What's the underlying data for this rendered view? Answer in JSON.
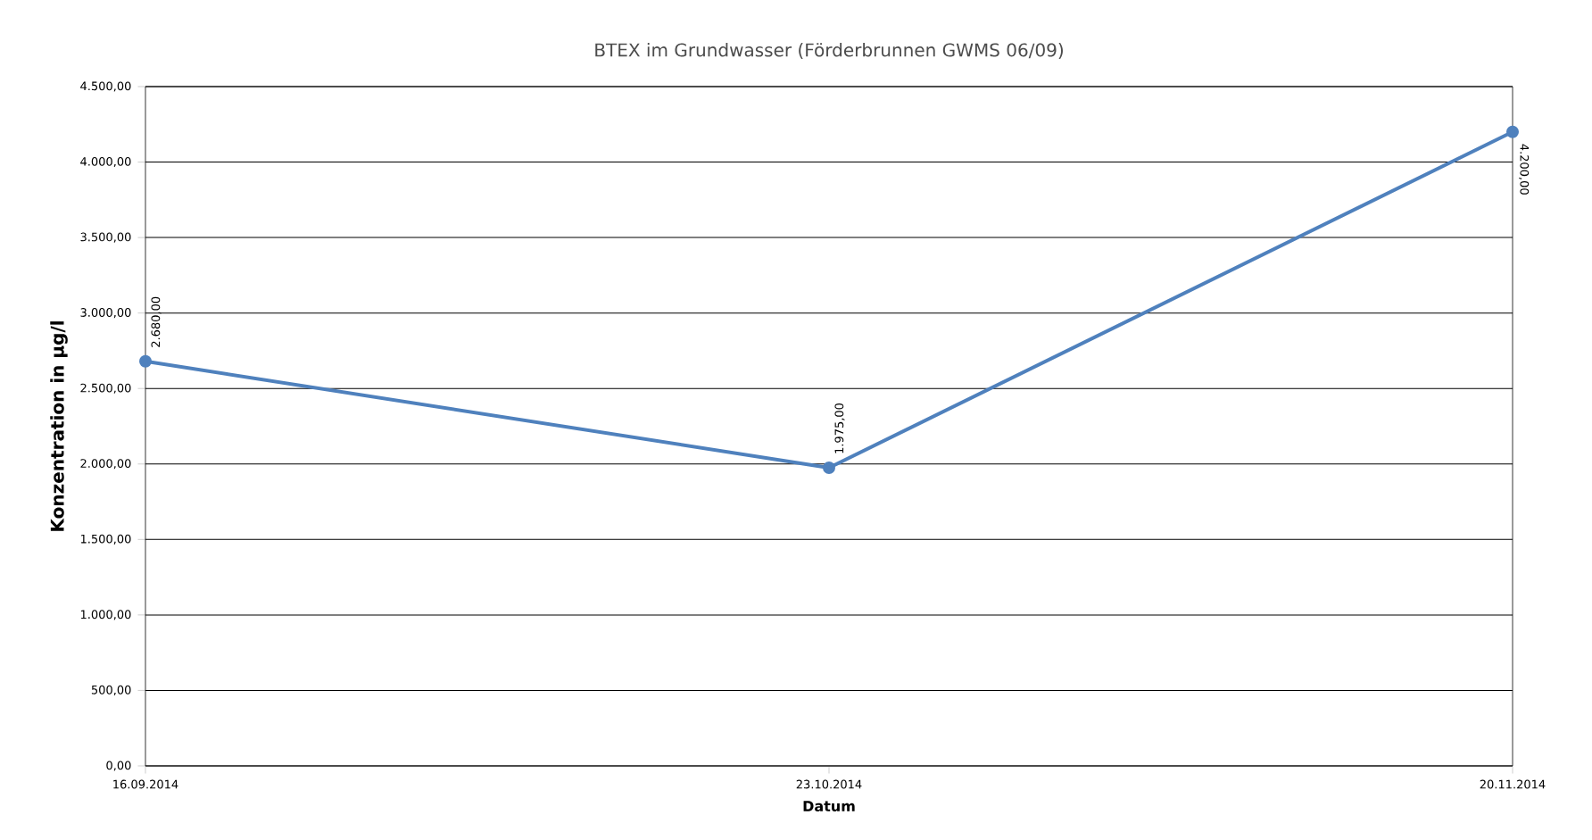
{
  "chart_data": {
    "type": "line",
    "title": "BTEX im Grundwasser (Förderbrunnen GWMS 06/09)",
    "xlabel": "Datum",
    "ylabel": "Konzentration in µg/l",
    "categories": [
      "16.09.2014",
      "23.10.2014",
      "20.11.2014"
    ],
    "series": [
      {
        "color": "#4f81bd",
        "values": [
          2680,
          1975,
          4200
        ],
        "value_labels": [
          "2.680,00",
          "1.975,00",
          "4.200,00"
        ]
      }
    ],
    "ylim": [
      0,
      4500
    ],
    "yticks": [
      {
        "value": 0,
        "label": "0,00"
      },
      {
        "value": 500,
        "label": "500,00"
      },
      {
        "value": 1000,
        "label": "1.000,00"
      },
      {
        "value": 1500,
        "label": "1.500,00"
      },
      {
        "value": 2000,
        "label": "2.000,00"
      },
      {
        "value": 2500,
        "label": "2.500,00"
      },
      {
        "value": 3000,
        "label": "3.000,00"
      },
      {
        "value": 3500,
        "label": "3.500,00"
      },
      {
        "value": 4000,
        "label": "4.000,00"
      },
      {
        "value": 4500,
        "label": "4.500,00"
      }
    ],
    "grid": "y",
    "marker": "circle",
    "line_style": "solid"
  }
}
